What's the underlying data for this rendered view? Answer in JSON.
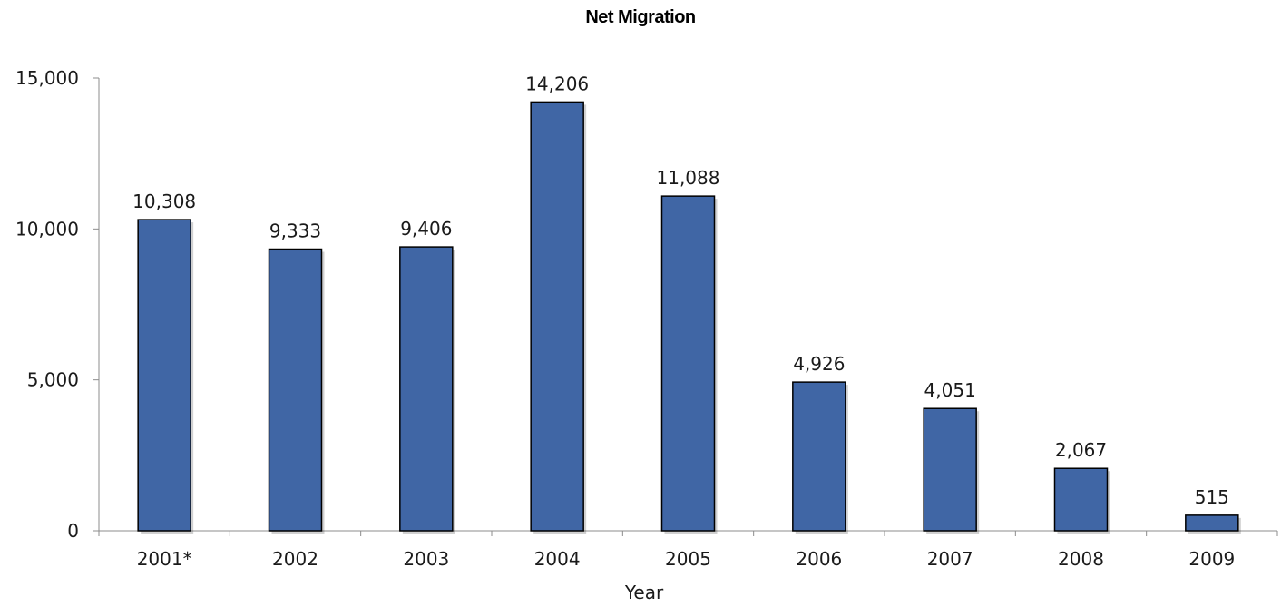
{
  "chart_data": {
    "type": "bar",
    "title": "Net Migration",
    "xlabel": "Year",
    "ylabel": "",
    "categories": [
      "2001*",
      "2002",
      "2003",
      "2004",
      "2005",
      "2006",
      "2007",
      "2008",
      "2009"
    ],
    "values": [
      10308,
      9333,
      9406,
      14206,
      11088,
      4926,
      4051,
      2067,
      515
    ],
    "value_labels": [
      "10,308",
      "9,333",
      "9,406",
      "14,206",
      "11,088",
      "4,926",
      "4,051",
      "2,067",
      "515"
    ],
    "ylim": [
      0,
      15000
    ],
    "yticks": [
      0,
      5000,
      10000,
      15000
    ],
    "ytick_labels": [
      "0",
      "5,000",
      "10,000",
      "15,000"
    ],
    "grid": false,
    "legend": "none",
    "bar_color": "#4066A5",
    "bar_edge_color": "#000000"
  }
}
